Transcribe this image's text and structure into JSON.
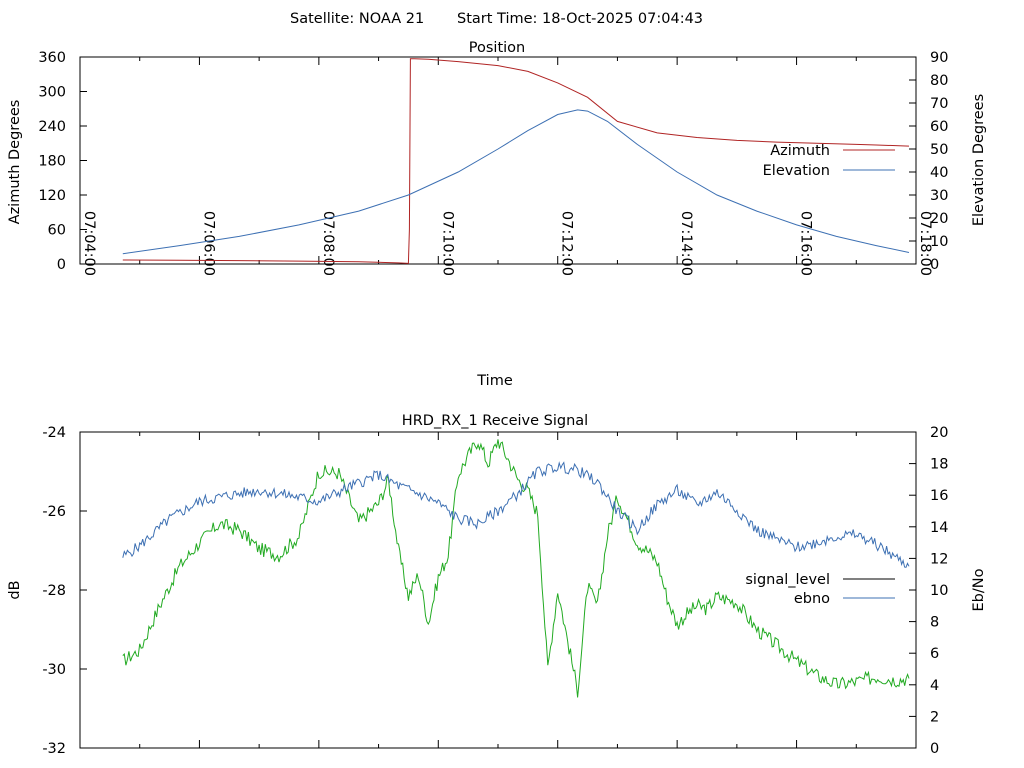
{
  "header": {
    "satellite_label": "Satellite: NOAA 21",
    "start_time_label": "Start Time: 18-Oct-2025 07:04:43"
  },
  "chart_data": [
    {
      "type": "line",
      "title": "Position",
      "xlabel": "Time",
      "ylabel": "Azimuth Degrees",
      "y2label": "Elevation Degrees",
      "x_tick_labels": [
        "07:04:00",
        "07:06:00",
        "07:08:00",
        "07:10:00",
        "07:12:00",
        "07:14:00",
        "07:16:00",
        "07:18:00"
      ],
      "y_tick_labels": [
        "0",
        "60",
        "120",
        "180",
        "240",
        "300",
        "360"
      ],
      "y2_tick_labels": [
        "0",
        "10",
        "20",
        "30",
        "40",
        "50",
        "60",
        "70",
        "80",
        "90"
      ],
      "xlim_seconds": [
        0,
        840
      ],
      "ylim": [
        0,
        360
      ],
      "y2lim": [
        0,
        90
      ],
      "legend_position": "right",
      "series": [
        {
          "name": "Azimuth",
          "axis": "y1",
          "color": "#b02424",
          "x_seconds": [
            43,
            100,
            160,
            220,
            280,
            320,
            330,
            331,
            332,
            336,
            350,
            380,
            420,
            450,
            480,
            510,
            540,
            580,
            620,
            660,
            700,
            740,
            780,
            800,
            833
          ],
          "values": [
            7,
            6.5,
            6,
            5,
            4,
            2,
            1,
            60,
            357,
            357,
            356,
            352,
            345,
            335,
            315,
            290,
            248,
            228,
            220,
            215,
            212,
            210,
            208,
            207,
            205
          ]
        },
        {
          "name": "Elevation",
          "axis": "y2",
          "color": "#3d70b3",
          "x_seconds": [
            43,
            100,
            160,
            220,
            280,
            330,
            380,
            420,
            450,
            480,
            500,
            510,
            530,
            560,
            600,
            640,
            680,
            720,
            760,
            800,
            833
          ],
          "values": [
            4.5,
            8,
            12,
            17,
            23,
            30,
            40,
            50,
            58,
            65,
            67,
            66.5,
            62,
            52,
            40,
            30,
            23,
            17,
            12,
            8,
            5
          ]
        }
      ]
    },
    {
      "type": "line",
      "title": "HRD_RX_1 Receive Signal",
      "ylabel": "dB",
      "y2label": "Eb/No",
      "y_tick_labels": [
        "-24",
        "-26",
        "-28",
        "-30",
        "-32"
      ],
      "y2_tick_labels": [
        "0",
        "2",
        "4",
        "6",
        "8",
        "10",
        "12",
        "14",
        "16",
        "18",
        "20"
      ],
      "ylim": [
        -32,
        -24
      ],
      "y2lim": [
        0,
        20
      ],
      "legend_position": "right",
      "series": [
        {
          "name": "signal_level",
          "axis": "y1",
          "color": "#000000",
          "x_seconds": [],
          "values": []
        },
        {
          "name": "ebno",
          "axis": "y2",
          "color": "#3d70b3",
          "x_seconds": [
            43,
            60,
            90,
            120,
            150,
            180,
            210,
            240,
            270,
            300,
            320,
            340,
            360,
            380,
            400,
            420,
            440,
            460,
            480,
            500,
            520,
            540,
            560,
            580,
            600,
            620,
            640,
            660,
            680,
            700,
            720,
            740,
            760,
            780,
            800,
            833
          ],
          "values": [
            12.1,
            12.8,
            14.5,
            15.6,
            16.0,
            16.3,
            16.0,
            15.6,
            16.5,
            17.3,
            16.6,
            16.1,
            15.5,
            14.5,
            14.2,
            15.0,
            16.1,
            17.5,
            17.8,
            17.6,
            16.8,
            15.0,
            13.8,
            15.4,
            16.3,
            15.4,
            16.2,
            15.1,
            13.8,
            13.2,
            12.7,
            13.0,
            13.4,
            13.5,
            12.9,
            11.5
          ]
        },
        {
          "name": "",
          "axis": "y2",
          "color": "#22aa22",
          "x_seconds": [
            43,
            60,
            80,
            100,
            120,
            140,
            160,
            180,
            200,
            220,
            240,
            260,
            280,
            300,
            310,
            320,
            330,
            340,
            350,
            360,
            370,
            380,
            390,
            400,
            410,
            420,
            430,
            440,
            450,
            460,
            470,
            480,
            490,
            500,
            510,
            520,
            530,
            540,
            550,
            560,
            570,
            580,
            590,
            600,
            610,
            620,
            630,
            640,
            660,
            680,
            700,
            720,
            740,
            760,
            780,
            800,
            820,
            833
          ],
          "values": [
            5.5,
            6.2,
            9.0,
            11.5,
            13.0,
            14.2,
            13.8,
            12.6,
            12.2,
            13.4,
            17.5,
            17.4,
            14.3,
            15.5,
            17.0,
            12.5,
            9.6,
            11.0,
            7.9,
            10.8,
            12.2,
            17.3,
            18.5,
            19.5,
            18.0,
            19.5,
            18.3,
            17.0,
            16.3,
            14.8,
            5.0,
            10.0,
            6.8,
            3.6,
            10.2,
            9.0,
            13.5,
            15.9,
            14.5,
            13.0,
            12.5,
            11.8,
            9.5,
            7.8,
            8.5,
            9.0,
            8.8,
            9.6,
            9.2,
            7.5,
            6.5,
            5.5,
            4.6,
            4.0,
            4.2,
            4.5,
            4.3,
            4.4
          ]
        }
      ]
    }
  ]
}
